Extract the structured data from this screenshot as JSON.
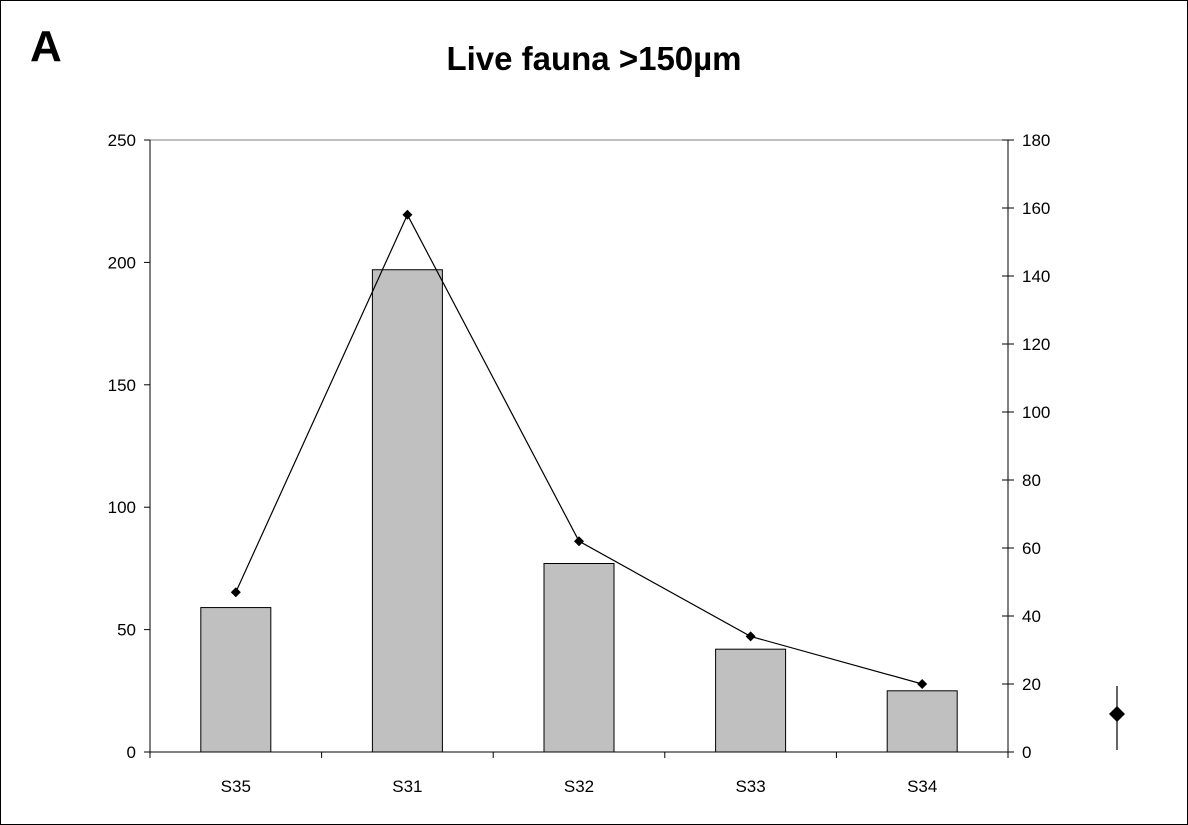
{
  "panel_letter": "A",
  "chart_data": {
    "type": "bar",
    "title": "Live fauna >150µm",
    "xlabel": "",
    "ylabel": "",
    "categories": [
      "S35",
      "S31",
      "S32",
      "S33",
      "S34"
    ],
    "series": [
      {
        "type": "bar",
        "axis": "left",
        "values": [
          59,
          197,
          77,
          42,
          25
        ],
        "color": "#c0c0c0"
      },
      {
        "type": "line",
        "axis": "right",
        "marker": "diamond",
        "values": [
          47,
          158,
          62,
          34,
          20
        ],
        "color": "#000000"
      }
    ],
    "ylim_left": [
      0,
      250
    ],
    "yticks_left": [
      0,
      50,
      100,
      150,
      200,
      250
    ],
    "ylim_right": [
      0,
      180
    ],
    "yticks_right": [
      0,
      20,
      40,
      60,
      80,
      100,
      120,
      140,
      160,
      180
    ],
    "grid": false,
    "legend": "right, marker symbol only"
  }
}
